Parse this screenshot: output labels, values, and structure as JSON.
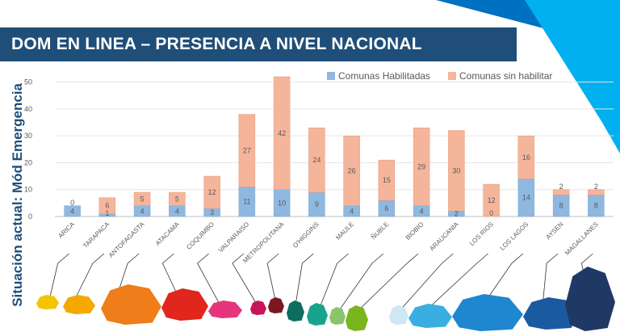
{
  "slide": {
    "title": "DOM EN LINEA – PRESENCIA A NIVEL NACIONAL",
    "side_label": "Situación actual: Mód Emergencia",
    "colors": {
      "banner": "#1f4e79",
      "accent_light": "#00b0f0",
      "accent_dark": "#0070c0",
      "side_label": "#1f4e79"
    }
  },
  "chart_data": {
    "type": "bar",
    "stacked": true,
    "categories": [
      "ARICA",
      "TARAPACA",
      "ANTOFAGASTA",
      "ATACAMA",
      "COQUIMBO",
      "VALPARAISO",
      "METROPOLITANA",
      "O'HIGGINS",
      "MAULE",
      "ÑUBLE",
      "BIOBIO",
      "ARAUCANIA",
      "LOS RIOS",
      "LOS LAGOS",
      "AYSEN",
      "MAGALLANES"
    ],
    "series": [
      {
        "name": "Comunas Habilitadas",
        "color": "#8fb8e0",
        "values": [
          4,
          1,
          4,
          4,
          3,
          11,
          10,
          9,
          4,
          6,
          4,
          2,
          0,
          14,
          8,
          8
        ]
      },
      {
        "name": "Comunas sin habilitar",
        "color": "#f5b59a",
        "values": [
          0,
          6,
          5,
          5,
          12,
          27,
          42,
          24,
          26,
          15,
          29,
          30,
          12,
          16,
          2,
          2
        ]
      }
    ],
    "yticks": [
      0,
      10,
      20,
      30,
      40,
      50
    ],
    "ylim": [
      0,
      55
    ],
    "legend_position": "top-right",
    "grid": true
  },
  "region_colors": [
    "#f5c400",
    "#f5a800",
    "#ee7d1a",
    "#e0261d",
    "#e6357d",
    "#c8155a",
    "#7a1822",
    "#0d6e5f",
    "#1aa38c",
    "#8bc56b",
    "#7ab51d",
    "#cfe6f5",
    "#3aaee0",
    "#1f86d0",
    "#1a5aa0",
    "#203864"
  ]
}
